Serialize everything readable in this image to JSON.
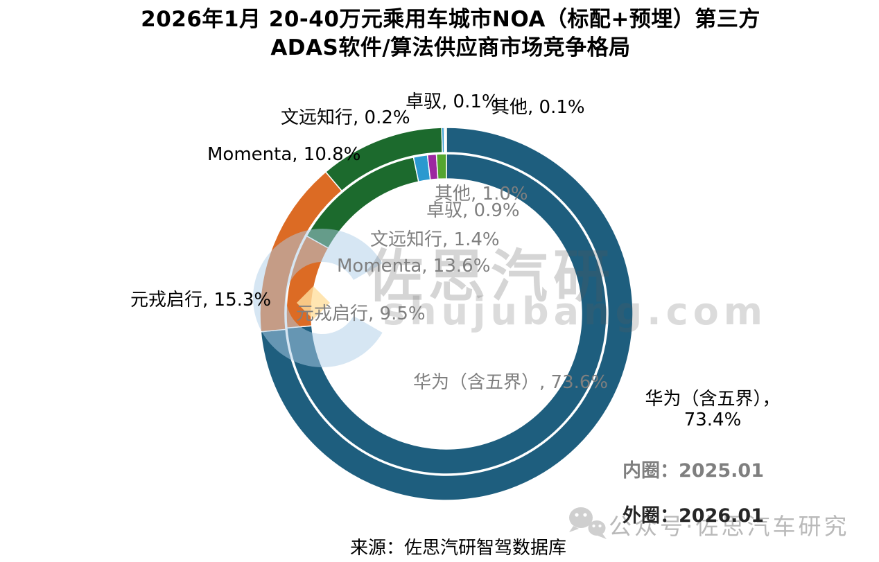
{
  "title": {
    "line1": "2026年1月 20-40万元乘用车城市NOA（标配+预埋）第三方",
    "line2": "ADAS软件/算法供应商市场竞争格局"
  },
  "chart_data": {
    "type": "pie",
    "subtype": "double-donut",
    "unit": "%",
    "start_angle_deg": 0,
    "direction": "clockwise",
    "categories": [
      "华为（含五界）",
      "元戎启行",
      "Momenta",
      "文远知行",
      "卓驭",
      "其他"
    ],
    "colors": [
      "#1E5E7E",
      "#DC6B24",
      "#1C6A2D",
      "#2B99CF",
      "#9C28A0",
      "#54A52F"
    ],
    "series": [
      {
        "name": "内圈：2025.01",
        "ring": "inner",
        "values": [
          73.6,
          9.5,
          13.6,
          1.4,
          0.9,
          1.0
        ]
      },
      {
        "name": "外圈：2026.01",
        "ring": "outer",
        "values": [
          73.4,
          15.3,
          10.8,
          0.2,
          0.1,
          0.1
        ]
      }
    ]
  },
  "labels": {
    "outer": {
      "zhuoyu": "卓驭, 0.1%",
      "qita": "其他, 0.1%",
      "wenyuan": "文远知行, 0.2%",
      "momenta": "Momenta, 10.8%",
      "yuanrong": "元戎启行, 15.3%",
      "huawei_line1": "华为（含五界），",
      "huawei_line2": "73.4%"
    },
    "inner": {
      "qita": "其他, 1.0%",
      "zhuoyu": "卓驭, 0.9%",
      "wenyuan": "文远知行, 1.4%",
      "momenta": "Momenta, 13.6%",
      "yuanrong": "元戎启行, 9.5%",
      "huawei": "华为（含五界）, 73.6%"
    }
  },
  "legend": {
    "inner_ring": "内圈：2025.01",
    "outer_ring": "外圈：2026.01"
  },
  "source": "来源：佐思汽研智驾数据库",
  "watermark": {
    "brand": "佐思汽研",
    "site": "shujubang.com",
    "account": "公众号·佐思汽车研究",
    "icons": [
      "wechat-icon",
      "zuosi-logo-icon"
    ]
  }
}
